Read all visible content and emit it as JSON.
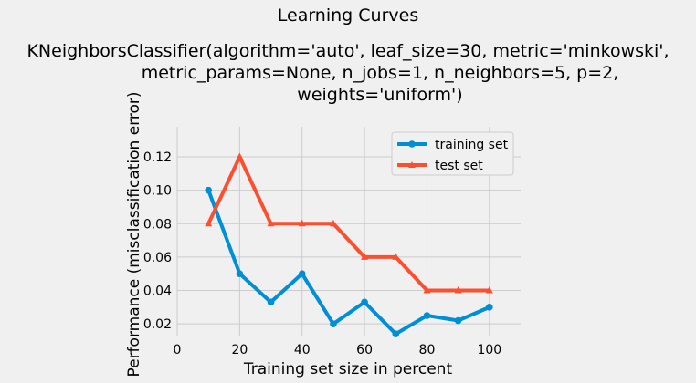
{
  "chart_data": {
    "type": "line",
    "title": "Learning Curves",
    "subtitle_lines": [
      "KNeighborsClassifier(algorithm='auto', leaf_size=30, metric='minkowski',",
      "metric_params=None, n_jobs=1, n_neighbors=5, p=2,",
      "weights='uniform')"
    ],
    "xlabel": "Training set size in percent",
    "ylabel": "Performance (misclassification error)",
    "xlim": [
      0,
      110
    ],
    "ylim": [
      0.013,
      0.138
    ],
    "x_ticks": [
      0,
      20,
      40,
      60,
      80,
      100
    ],
    "x_tick_labels": [
      "0",
      "20",
      "40",
      "60",
      "80",
      "100"
    ],
    "y_ticks": [
      0.02,
      0.04,
      0.06,
      0.08,
      0.1,
      0.12
    ],
    "y_tick_labels": [
      "0.02",
      "0.04",
      "0.06",
      "0.08",
      "0.10",
      "0.12"
    ],
    "grid": true,
    "legend_position": "top-right",
    "x": [
      10,
      20,
      30,
      40,
      50,
      60,
      70,
      80,
      90,
      100
    ],
    "series": [
      {
        "name": "training set",
        "color": "#008fd5",
        "marker": "circle",
        "values": [
          0.1,
          0.05,
          0.033,
          0.05,
          0.02,
          0.033,
          0.014,
          0.025,
          0.022,
          0.03
        ]
      },
      {
        "name": "test set",
        "color": "#fc4f30",
        "marker": "triangle",
        "values": [
          0.08,
          0.12,
          0.08,
          0.08,
          0.08,
          0.06,
          0.06,
          0.04,
          0.04,
          0.04
        ]
      }
    ]
  }
}
